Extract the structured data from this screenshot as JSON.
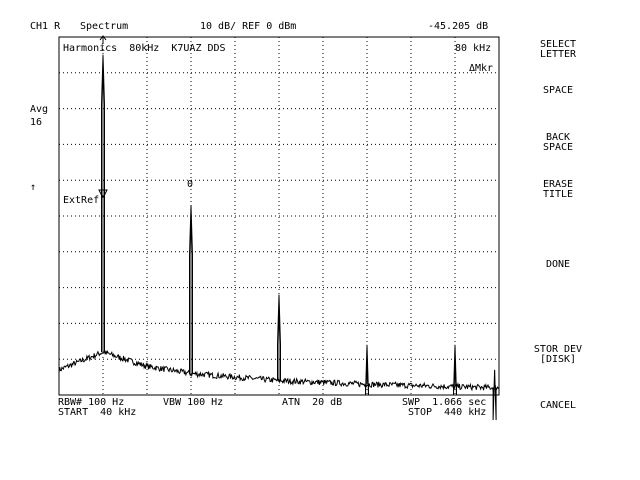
{
  "header": {
    "channel": "CH1 R",
    "mode": "Spectrum",
    "scale": "10 dB/ REF 0 dBm",
    "marker_value": "-45.205 dB"
  },
  "title_line": {
    "title": "Harmonics  80kHz  K7UAZ DDS",
    "marker_freq": "80 kHz",
    "marker_type": "ΔMkr"
  },
  "left_panel": {
    "avg_label": "Avg",
    "avg_count": "16",
    "ref_arrow": "↑",
    "ext_ref": "ExtRef"
  },
  "marker": {
    "label": "0",
    "freq_khz": 80
  },
  "softkeys": [
    "SELECT\nLETTER",
    "SPACE",
    "BACK\nSPACE",
    "ERASE\nTITLE",
    "DONE",
    "STOR DEV\n[DISK]",
    "CANCEL"
  ],
  "footer": {
    "rbw": "RBW# 100 Hz",
    "vbw": "VBW 100 Hz",
    "atn": "ATN  20 dB",
    "swp": "SWP  1.066 sec",
    "start": "START  40 kHz",
    "stop": "STOP  440 kHz"
  },
  "chart_data": {
    "type": "line",
    "title": "Harmonics  80kHz  K7UAZ DDS",
    "xlabel": "",
    "ylabel": "",
    "xlim_khz": [
      40,
      440
    ],
    "ylim_db": [
      -100,
      0
    ],
    "y_div_db": 10,
    "grid": true,
    "spectral_peaks": [
      {
        "freq_khz": 80,
        "level_db": -5
      },
      {
        "freq_khz": 160,
        "level_db": -47
      },
      {
        "freq_khz": 240,
        "level_db": -72
      },
      {
        "freq_khz": 320,
        "level_db": -86
      },
      {
        "freq_khz": 400,
        "level_db": -86
      },
      {
        "freq_khz": 436,
        "level_db": -93
      }
    ],
    "noise_floor": {
      "x_khz": [
        40,
        80,
        120,
        160,
        240,
        320,
        440
      ],
      "level_db": [
        -93,
        -88,
        -92,
        -94,
        -96,
        -97,
        -98
      ]
    }
  }
}
